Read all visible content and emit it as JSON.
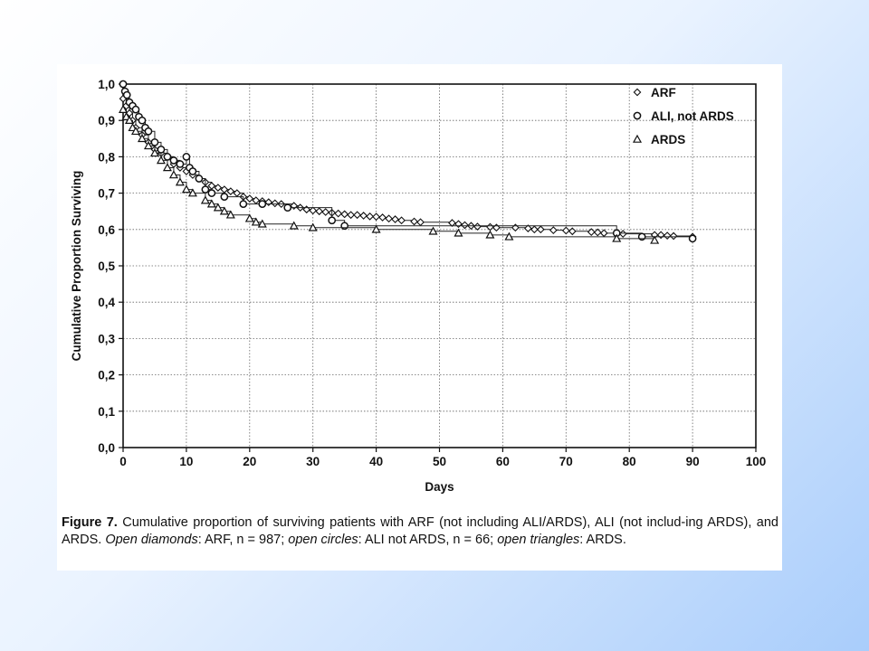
{
  "chart_data": {
    "type": "line",
    "ylabel": "Cumulative Proportion Surviving",
    "xlabel": "Days",
    "xlim": [
      0,
      100
    ],
    "ylim": [
      0,
      1
    ],
    "x_ticks": [
      "0",
      "10",
      "20",
      "30",
      "40",
      "50",
      "60",
      "70",
      "80",
      "90",
      "100"
    ],
    "y_ticks": [
      "0,0",
      "0,1",
      "0,2",
      "0,3",
      "0,4",
      "0,5",
      "0,6",
      "0,7",
      "0,8",
      "0,9",
      "1,0"
    ],
    "grid": true,
    "legend_position": "top-right",
    "series": [
      {
        "name": "ARF",
        "marker": "diamond",
        "x": [
          0,
          0.5,
          1,
          1.5,
          2,
          3,
          4,
          5,
          6,
          7,
          8,
          9,
          10,
          11,
          12,
          13,
          14,
          15,
          16,
          17,
          18,
          19,
          20,
          21,
          22,
          23,
          24,
          25,
          27,
          28,
          29,
          30,
          31,
          32,
          33,
          34,
          35,
          36,
          37,
          38,
          39,
          40,
          41,
          42,
          43,
          44,
          46,
          47,
          52,
          53,
          54,
          55,
          56,
          58,
          59,
          62,
          64,
          65,
          66,
          68,
          70,
          71,
          74,
          75,
          76,
          78,
          79,
          84,
          85,
          86,
          87,
          90
        ],
        "y": [
          0.96,
          0.94,
          0.92,
          0.9,
          0.88,
          0.86,
          0.84,
          0.82,
          0.81,
          0.8,
          0.78,
          0.77,
          0.76,
          0.75,
          0.74,
          0.73,
          0.72,
          0.715,
          0.71,
          0.705,
          0.7,
          0.69,
          0.685,
          0.68,
          0.678,
          0.675,
          0.672,
          0.67,
          0.665,
          0.66,
          0.655,
          0.652,
          0.65,
          0.648,
          0.646,
          0.644,
          0.642,
          0.64,
          0.64,
          0.638,
          0.636,
          0.635,
          0.633,
          0.63,
          0.628,
          0.625,
          0.622,
          0.62,
          0.618,
          0.615,
          0.612,
          0.61,
          0.608,
          0.607,
          0.605,
          0.605,
          0.603,
          0.6,
          0.6,
          0.598,
          0.597,
          0.595,
          0.593,
          0.592,
          0.59,
          0.59,
          0.588,
          0.585,
          0.585,
          0.583,
          0.582,
          0.58
        ]
      },
      {
        "name": "ALI, not ARDS",
        "marker": "circle",
        "x": [
          0,
          0.3,
          0.6,
          1,
          1.5,
          2,
          2.5,
          3,
          3.5,
          4,
          5,
          6,
          7,
          8,
          9,
          10,
          10.5,
          11,
          12,
          13,
          14,
          16,
          19,
          22,
          26,
          33,
          35,
          78,
          82,
          90
        ],
        "y": [
          1.0,
          0.98,
          0.97,
          0.95,
          0.94,
          0.93,
          0.91,
          0.9,
          0.88,
          0.87,
          0.84,
          0.82,
          0.8,
          0.79,
          0.78,
          0.8,
          0.77,
          0.76,
          0.74,
          0.71,
          0.7,
          0.69,
          0.67,
          0.67,
          0.66,
          0.625,
          0.61,
          0.59,
          0.58,
          0.575
        ]
      },
      {
        "name": "ARDS",
        "marker": "triangle",
        "x": [
          0,
          0.5,
          1,
          1.5,
          2,
          3,
          4,
          5,
          6,
          7,
          8,
          9,
          10,
          11,
          13,
          14,
          15,
          16,
          17,
          20,
          21,
          22,
          27,
          30,
          40,
          49,
          53,
          58,
          61,
          78,
          84
        ],
        "y": [
          0.93,
          0.91,
          0.9,
          0.88,
          0.87,
          0.85,
          0.83,
          0.81,
          0.79,
          0.77,
          0.75,
          0.73,
          0.71,
          0.7,
          0.68,
          0.67,
          0.66,
          0.65,
          0.64,
          0.63,
          0.62,
          0.615,
          0.61,
          0.605,
          0.6,
          0.595,
          0.59,
          0.585,
          0.58,
          0.575,
          0.57
        ]
      }
    ]
  },
  "caption": {
    "label": "Figure 7.",
    "part1": " Cumulative proportion of surviving patients with ARF (not including ALI/ARDS), ALI (not includ-ing ARDS), and ARDS. ",
    "diamonds_label": "Open diamonds",
    "part2": ": ARF, n = 987; ",
    "circles_label": "open circles",
    "part3": ": ALI not ARDS, n = 66; ",
    "triangles_label": "open triangles",
    "part4": ": ARDS."
  }
}
